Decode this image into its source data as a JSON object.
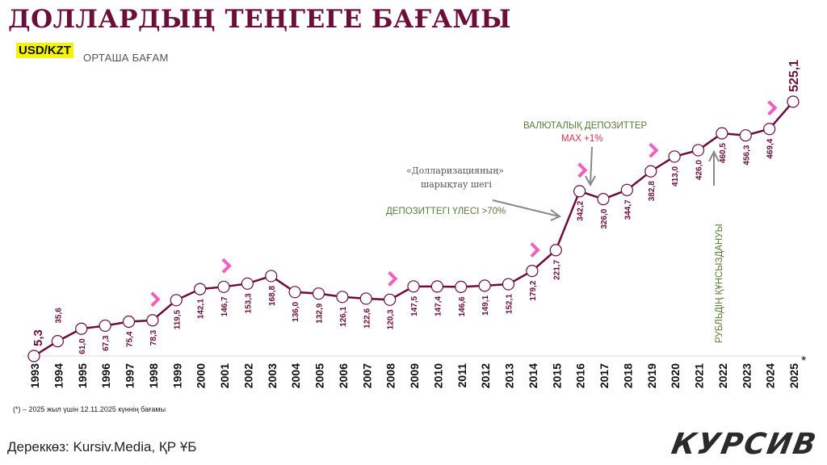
{
  "title": "ДОЛЛАРДЫҢ ТЕҢГЕГЕ БАҒАМЫ",
  "pair_badge": "USD/KZT",
  "subtitle": "ОРТАША БАҒАМ",
  "footnote": "(*) – 2025 жыл үшін 12.11.2025 күннің бағамы",
  "source": "Дереккөз: Kursiv.Media, ҚР ҰБ",
  "logo": "КУРСИВ",
  "colors": {
    "line": "#6b0f3a",
    "chevron": "#f060c0",
    "badge": "#f5f500",
    "annotation": "#5a7a3a",
    "highlight": "#d03050"
  },
  "annotations": {
    "deposits_title": "ВАЛЮТАЛЫҚ ДЕПОЗИТТЕР",
    "deposits_max": "MAX  +1%",
    "dollarization_1": "«Долларизацияның»",
    "dollarization_2": "шарықтау шегі",
    "deposit_share": "ДЕПОЗИТТЕГІ ҮЛЕСІ >70%",
    "ruble": "РУБЛЬДІҢ ҚҰНСЫЗДАНУЫ"
  },
  "chart_data": {
    "type": "line",
    "title": "ДОЛЛАРДЫҢ ТЕҢГЕГЕ БАҒАМЫ",
    "categories": [
      "1993",
      "1994",
      "1995",
      "1996",
      "1997",
      "1998",
      "1999",
      "2000",
      "2001",
      "2002",
      "2003",
      "2004",
      "2005",
      "2006",
      "2007",
      "2008",
      "2009",
      "2010",
      "2011",
      "2012",
      "2013",
      "2014",
      "2015",
      "2016",
      "2017",
      "2018",
      "2019",
      "2020",
      "2021",
      "2022",
      "2023",
      "2024",
      "2025"
    ],
    "values": [
      5.3,
      35.6,
      61.0,
      67.3,
      75.4,
      78.3,
      119.5,
      142.1,
      146.7,
      153.3,
      168.8,
      136.0,
      132.9,
      126.1,
      122.6,
      120.3,
      147.5,
      147.4,
      146.6,
      149.1,
      152.1,
      179.2,
      221.7,
      342.2,
      326.0,
      344.7,
      382.8,
      413.0,
      426.0,
      460.5,
      456.3,
      469.4,
      525.1
    ],
    "data_labels": [
      "5,3",
      "35,6",
      "61,0",
      "67,3",
      "75,4",
      "78,3",
      "119,5",
      "142,1",
      "146,7",
      "153,3",
      "168,8",
      "136,0",
      "132,9",
      "126,1",
      "122,6",
      "120,3",
      "147,5",
      "147,4",
      "146,6",
      "149,1",
      "152,1",
      "179,2",
      "221,7",
      "342,2",
      "326,0",
      "344,7",
      "382,8",
      "413,0",
      "426,0",
      "460,5",
      "456,3",
      "469,4",
      "525,1"
    ],
    "devaluation_markers": [
      "1998",
      "2001",
      "2008",
      "2014",
      "2016",
      "2019",
      "2024"
    ],
    "last_year_mark": "*",
    "grid": false,
    "legend": "none"
  }
}
